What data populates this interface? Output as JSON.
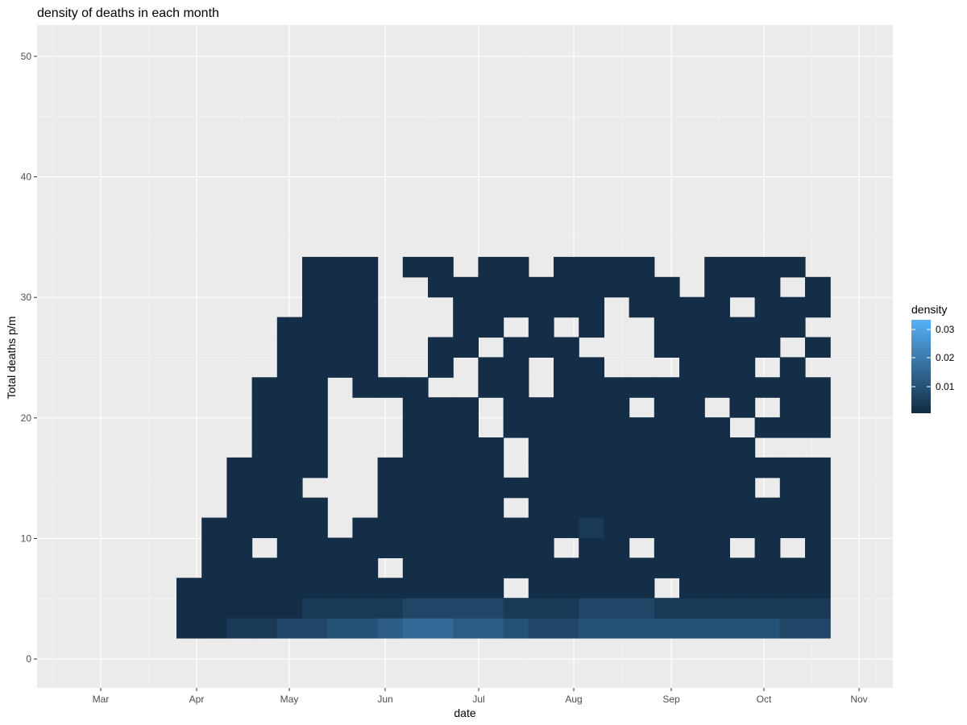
{
  "chart_data": {
    "type": "heatmap",
    "title": "density of deaths in each month",
    "xlabel": "date",
    "ylabel": "Total deaths p/m",
    "x_ticks": [
      "Mar",
      "Apr",
      "May",
      "Jun",
      "Jul",
      "Aug",
      "Sep",
      "Oct",
      "Nov"
    ],
    "y_ticks": [
      0,
      10,
      20,
      30,
      40,
      50
    ],
    "ylim": [
      -2.4,
      52.6
    ],
    "grid": true,
    "legend": {
      "title": "density",
      "labels": [
        "0.03",
        "0.02",
        "0.01"
      ],
      "position": "right",
      "low_color": "#132B43",
      "high_color": "#56B1F7"
    },
    "cell_width_days": 7.5,
    "cell_height_deaths": 5,
    "cells_note": "rows keyed by bottom of death bin; values are density",
    "rows": [
      {
        "y0": 2,
        "start": "2020-03-27",
        "values": [
          0.0011,
          0.0011,
          0.006,
          0.007,
          0.009,
          0.01,
          0.013,
          0.016,
          0.016,
          0.012,
          0.008,
          0.014,
          0.014,
          0.014,
          0.014,
          0.014,
          0.014,
          0.014,
          0.012,
          0.01,
          0.008,
          0.008,
          0.008,
          0.008,
          0.008,
          0.008,
          0.009,
          0.009,
          0.01,
          0.011,
          0.011,
          0.003
        ]
      },
      {
        "y0": 7,
        "start": "2020-03-27",
        "values": [
          0.0012,
          0.0012,
          0.003,
          0.003,
          0.005,
          0.006,
          0.006,
          0.006,
          0.01,
          0.004,
          0.008,
          0.011,
          0.008,
          0.005,
          0.005,
          0.006,
          0.006,
          0.006,
          0.006,
          0.004,
          0.004,
          0.004,
          0.002,
          0.002,
          0.002,
          0.002,
          0.002,
          0.004,
          0.004,
          0.004,
          0.004,
          null
        ]
      },
      {
        "y0": 7,
        "start": "2020-03-27",
        "values": []
      }
    ],
    "grid_cells": [
      [
        null,
        null,
        null,
        null,
        null,
        null,
        null,
        null,
        null,
        null,
        null,
        null,
        null,
        null,
        null,
        null,
        null,
        null,
        null,
        null,
        null,
        null,
        null,
        null,
        null,
        null,
        null,
        null,
        null,
        null,
        null,
        null,
        null,
        null,
        null,
        null,
        null,
        null,
        null,
        null,
        null,
        null,
        null
      ]
    ]
  }
}
